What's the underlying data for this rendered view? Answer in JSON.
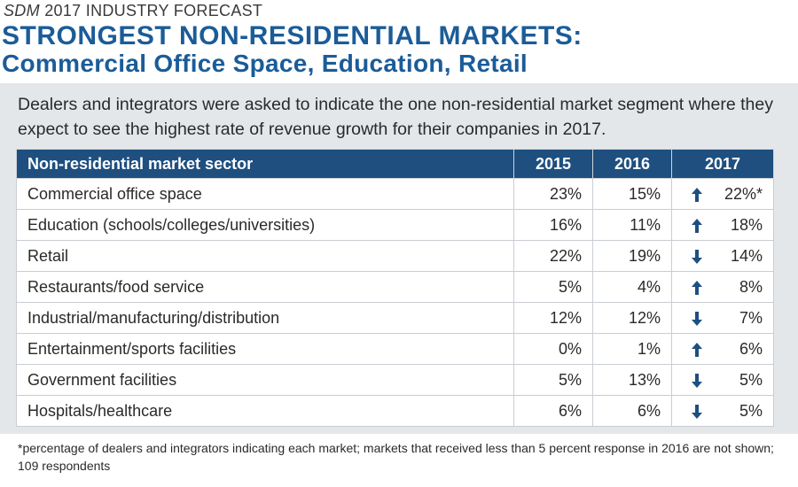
{
  "header": {
    "brand": "SDM",
    "kicker": "2017 INDUSTRY FORECAST",
    "title_line1": "STRONGEST NON-RESIDENTIAL MARKETS:",
    "title_line2": "Commercial Office Space, Education, Retail"
  },
  "intro": "Dealers and integrators were asked to indicate the one non-residential market segment where they expect to see the highest rate of revenue growth for their companies in 2017.",
  "table": {
    "columns": [
      "Non-residential market sector",
      "2015",
      "2016",
      "2017"
    ],
    "rows": [
      [
        "Commercial office space",
        "23%",
        "15%",
        "22%*"
      ],
      [
        "Education (schools/colleges/universities)",
        "16%",
        "11%",
        "18%"
      ],
      [
        "Retail",
        "22%",
        "19%",
        "14%"
      ],
      [
        "Restaurants/food service",
        "5%",
        "4%",
        "8%"
      ],
      [
        "Industrial/manufacturing/distribution",
        "12%",
        "12%",
        "7%"
      ],
      [
        "Entertainment/sports facilities",
        "0%",
        "1%",
        "6%"
      ],
      [
        "Government facilities",
        "5%",
        "13%",
        "5%"
      ],
      [
        "Hospitals/healthcare",
        "6%",
        "6%",
        "5%"
      ]
    ],
    "trend": [
      "up",
      "up",
      "down",
      "up",
      "down",
      "up",
      "down",
      "down"
    ]
  },
  "footnote": "*percentage of dealers and integrators indicating each market; markets that received less than 5 percent response in 2016 are not shown; 109 respondents"
}
